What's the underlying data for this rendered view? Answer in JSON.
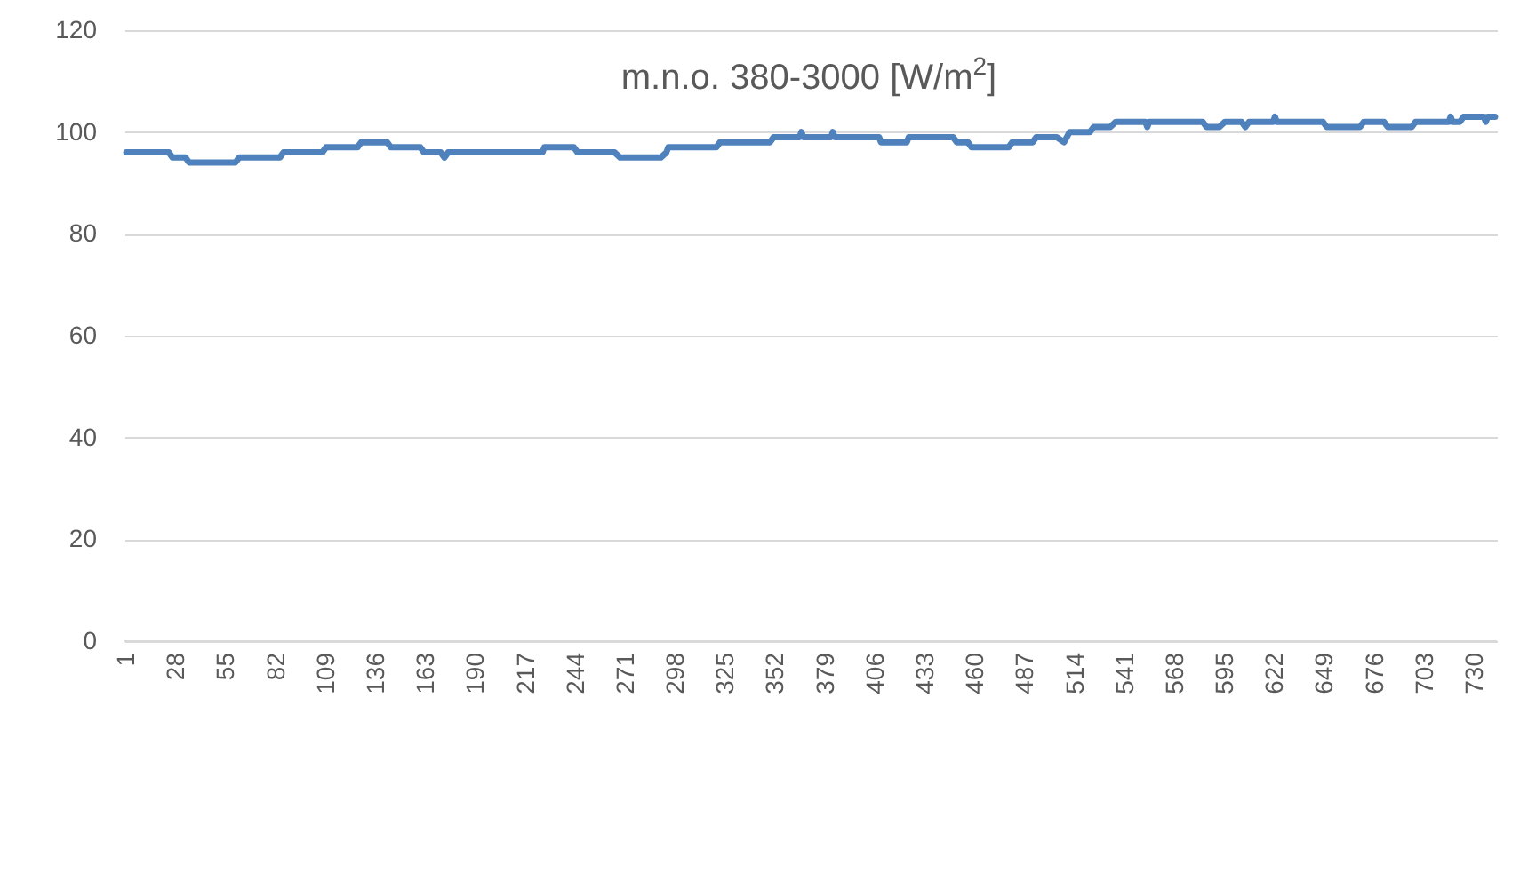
{
  "chart_data": {
    "type": "line",
    "title": "m.n.o. 380-3000 [W/m$^{2}$]",
    "x": [
      1,
      24,
      26,
      33,
      35,
      60,
      62,
      84,
      86,
      107,
      109,
      126,
      128,
      142,
      144,
      160,
      162,
      171,
      173,
      175,
      226,
      227,
      243,
      245,
      265,
      268,
      290,
      293,
      294,
      320,
      322,
      349,
      351,
      365,
      366,
      367,
      382,
      383,
      384,
      408,
      409,
      423,
      424,
      448,
      450,
      456,
      458,
      478,
      480,
      491,
      493,
      504,
      508,
      511,
      522,
      524,
      533,
      536,
      552,
      553,
      554,
      583,
      585,
      592,
      595,
      604,
      606,
      608,
      621,
      622,
      623,
      648,
      650,
      668,
      670,
      681,
      683,
      696,
      698,
      716,
      717,
      718,
      722,
      724,
      735,
      736,
      737,
      741
    ],
    "series": [
      {
        "color": "#4f81bd",
        "values": [
          96,
          96,
          95,
          95,
          94,
          94,
          95,
          95,
          96,
          96,
          97,
          97,
          98,
          98,
          97,
          97,
          96,
          96,
          95,
          96,
          96,
          97,
          97,
          96,
          96,
          95,
          95,
          96,
          97,
          97,
          98,
          98,
          99,
          99,
          100,
          99,
          99,
          100,
          99,
          99,
          98,
          98,
          99,
          99,
          98,
          98,
          97,
          97,
          98,
          98,
          99,
          99,
          98,
          100,
          100,
          101,
          101,
          102,
          102,
          101,
          102,
          102,
          101,
          101,
          102,
          102,
          101,
          102,
          102,
          103,
          102,
          102,
          101,
          101,
          102,
          102,
          101,
          101,
          102,
          102,
          103,
          102,
          102,
          103,
          103,
          102,
          103,
          103
        ]
      }
    ],
    "xlim": [
      0,
      742
    ],
    "xticks": [
      1,
      28,
      55,
      82,
      109,
      136,
      163,
      190,
      217,
      244,
      271,
      298,
      325,
      352,
      379,
      406,
      433,
      460,
      487,
      514,
      541,
      568,
      595,
      622,
      649,
      676,
      703,
      730
    ],
    "ylim": [
      0,
      120
    ],
    "yticks": [
      0,
      20,
      40,
      60,
      80,
      100,
      120
    ],
    "grid": "y",
    "line_style": "solid",
    "marker": "none"
  }
}
